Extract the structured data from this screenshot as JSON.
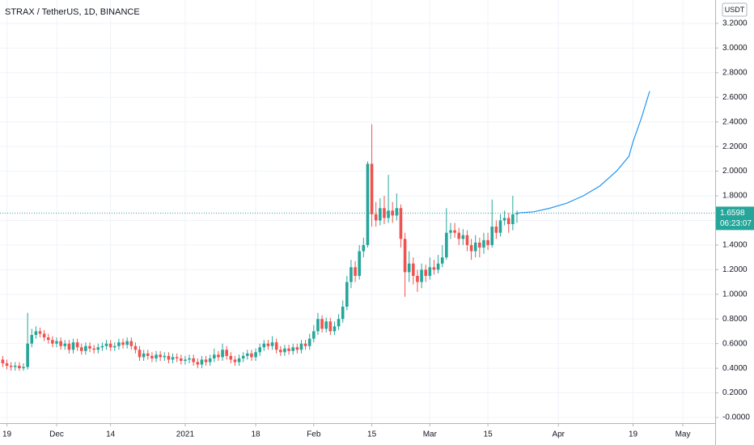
{
  "chart_data": {
    "type": "candlestick",
    "title": "STRAX / TetherUS, 1D, BINANCE",
    "currency": "USDT",
    "up_color": "#26a69a",
    "down_color": "#ef5350",
    "x": [
      0,
      1,
      2,
      3,
      4,
      5,
      6,
      7,
      8,
      9,
      10,
      11,
      12,
      13,
      14,
      15,
      16,
      17,
      18,
      19,
      20,
      21,
      22,
      23,
      24,
      25,
      26,
      27,
      28,
      29,
      30,
      31,
      32,
      33,
      34,
      35,
      36,
      37,
      38,
      39,
      40,
      41,
      42,
      43,
      44,
      45,
      46,
      47,
      48,
      49,
      50,
      51,
      52,
      53,
      54,
      55,
      56,
      57,
      58,
      59,
      60,
      61,
      62,
      63,
      64,
      65,
      66,
      67,
      68,
      69,
      70,
      71,
      72,
      73,
      74,
      75,
      76,
      77,
      78,
      79,
      80,
      81,
      82,
      83,
      84,
      85,
      86,
      87,
      88,
      89,
      90,
      91,
      92,
      93,
      94,
      95,
      96,
      97,
      98,
      99,
      100,
      101,
      102,
      103,
      104,
      105,
      106,
      107,
      108,
      109,
      110,
      111,
      112,
      113,
      114,
      115,
      116,
      117,
      118,
      119,
      120,
      121,
      122,
      123,
      124
    ],
    "open": [
      0.47,
      0.44,
      0.42,
      0.41,
      0.42,
      0.4,
      0.41,
      0.6,
      0.67,
      0.7,
      0.68,
      0.65,
      0.63,
      0.6,
      0.62,
      0.58,
      0.6,
      0.55,
      0.61,
      0.57,
      0.54,
      0.58,
      0.56,
      0.55,
      0.57,
      0.58,
      0.6,
      0.57,
      0.58,
      0.61,
      0.59,
      0.62,
      0.58,
      0.55,
      0.49,
      0.52,
      0.5,
      0.48,
      0.51,
      0.49,
      0.5,
      0.47,
      0.49,
      0.48,
      0.46,
      0.47,
      0.48,
      0.45,
      0.43,
      0.47,
      0.45,
      0.48,
      0.51,
      0.49,
      0.55,
      0.5,
      0.47,
      0.45,
      0.48,
      0.5,
      0.52,
      0.49,
      0.53,
      0.57,
      0.6,
      0.58,
      0.61,
      0.55,
      0.53,
      0.56,
      0.54,
      0.57,
      0.55,
      0.6,
      0.58,
      0.64,
      0.7,
      0.8,
      0.72,
      0.78,
      0.7,
      0.74,
      0.8,
      0.9,
      1.1,
      1.22,
      1.15,
      1.35,
      1.4,
      2.06,
      1.65,
      1.6,
      1.7,
      1.62,
      1.68,
      1.64,
      1.7,
      1.45,
      1.18,
      1.25,
      1.15,
      1.1,
      1.2,
      1.15,
      1.22,
      1.2,
      1.25,
      1.3,
      1.5,
      1.52,
      1.5,
      1.45,
      1.48,
      1.4,
      1.35,
      1.42,
      1.38,
      1.44,
      1.4,
      1.55,
      1.5,
      1.6,
      1.62,
      1.57,
      1.65
    ],
    "high": [
      0.5,
      0.47,
      0.45,
      0.45,
      0.45,
      0.44,
      0.85,
      0.72,
      0.74,
      0.73,
      0.71,
      0.68,
      0.66,
      0.65,
      0.65,
      0.63,
      0.63,
      0.64,
      0.64,
      0.6,
      0.61,
      0.61,
      0.59,
      0.6,
      0.61,
      0.63,
      0.63,
      0.61,
      0.64,
      0.64,
      0.65,
      0.65,
      0.61,
      0.58,
      0.55,
      0.55,
      0.53,
      0.54,
      0.54,
      0.53,
      0.53,
      0.52,
      0.52,
      0.51,
      0.5,
      0.51,
      0.51,
      0.48,
      0.5,
      0.5,
      0.51,
      0.56,
      0.54,
      0.6,
      0.58,
      0.53,
      0.5,
      0.51,
      0.53,
      0.55,
      0.55,
      0.56,
      0.6,
      0.63,
      0.63,
      0.66,
      0.64,
      0.58,
      0.59,
      0.59,
      0.6,
      0.6,
      0.63,
      0.63,
      0.68,
      0.75,
      0.85,
      0.83,
      0.81,
      0.81,
      0.78,
      0.84,
      0.95,
      1.15,
      1.28,
      1.27,
      1.4,
      1.46,
      2.08,
      2.38,
      1.75,
      1.78,
      1.8,
      1.97,
      1.75,
      1.82,
      1.73,
      1.5,
      1.35,
      1.3,
      1.2,
      1.25,
      1.24,
      1.3,
      1.28,
      1.32,
      1.4,
      1.7,
      1.58,
      1.58,
      1.54,
      1.53,
      1.52,
      1.45,
      1.48,
      1.46,
      1.5,
      1.5,
      1.77,
      1.6,
      1.65,
      1.68,
      1.66,
      1.8,
      1.68
    ],
    "low": [
      0.41,
      0.39,
      0.38,
      0.38,
      0.38,
      0.38,
      0.39,
      0.57,
      0.64,
      0.65,
      0.62,
      0.6,
      0.57,
      0.57,
      0.55,
      0.55,
      0.52,
      0.52,
      0.54,
      0.51,
      0.51,
      0.53,
      0.52,
      0.52,
      0.54,
      0.55,
      0.54,
      0.54,
      0.55,
      0.56,
      0.56,
      0.55,
      0.52,
      0.46,
      0.46,
      0.47,
      0.45,
      0.45,
      0.46,
      0.46,
      0.44,
      0.44,
      0.45,
      0.43,
      0.43,
      0.44,
      0.42,
      0.4,
      0.4,
      0.42,
      0.42,
      0.45,
      0.46,
      0.46,
      0.47,
      0.44,
      0.42,
      0.42,
      0.45,
      0.47,
      0.46,
      0.46,
      0.5,
      0.54,
      0.55,
      0.55,
      0.52,
      0.5,
      0.5,
      0.51,
      0.51,
      0.52,
      0.52,
      0.55,
      0.55,
      0.61,
      0.67,
      0.69,
      0.69,
      0.67,
      0.67,
      0.71,
      0.77,
      0.87,
      1.05,
      1.1,
      1.12,
      1.3,
      1.38,
      1.55,
      1.55,
      1.56,
      1.57,
      1.58,
      1.58,
      1.6,
      1.38,
      0.98,
      1.1,
      1.08,
      1.02,
      1.05,
      1.1,
      1.12,
      1.16,
      1.17,
      1.22,
      1.28,
      1.45,
      1.46,
      1.4,
      1.4,
      1.35,
      1.28,
      1.3,
      1.3,
      1.33,
      1.36,
      1.38,
      1.45,
      1.47,
      1.56,
      1.5,
      1.52,
      1.58
    ],
    "close": [
      0.44,
      0.42,
      0.41,
      0.42,
      0.4,
      0.41,
      0.6,
      0.67,
      0.7,
      0.68,
      0.65,
      0.63,
      0.6,
      0.62,
      0.58,
      0.6,
      0.55,
      0.61,
      0.57,
      0.54,
      0.58,
      0.56,
      0.55,
      0.57,
      0.58,
      0.6,
      0.57,
      0.58,
      0.61,
      0.59,
      0.62,
      0.58,
      0.55,
      0.49,
      0.52,
      0.5,
      0.48,
      0.51,
      0.49,
      0.5,
      0.47,
      0.49,
      0.48,
      0.46,
      0.47,
      0.48,
      0.45,
      0.43,
      0.47,
      0.45,
      0.48,
      0.51,
      0.49,
      0.55,
      0.5,
      0.47,
      0.45,
      0.48,
      0.5,
      0.52,
      0.49,
      0.53,
      0.57,
      0.6,
      0.58,
      0.61,
      0.55,
      0.53,
      0.56,
      0.54,
      0.57,
      0.55,
      0.6,
      0.58,
      0.64,
      0.7,
      0.8,
      0.72,
      0.78,
      0.7,
      0.74,
      0.8,
      0.9,
      1.1,
      1.22,
      1.15,
      1.35,
      1.4,
      2.06,
      1.65,
      1.6,
      1.7,
      1.62,
      1.68,
      1.64,
      1.7,
      1.45,
      1.18,
      1.25,
      1.15,
      1.1,
      1.2,
      1.15,
      1.22,
      1.2,
      1.25,
      1.3,
      1.5,
      1.52,
      1.5,
      1.45,
      1.48,
      1.4,
      1.35,
      1.42,
      1.38,
      1.44,
      1.4,
      1.55,
      1.5,
      1.6,
      1.62,
      1.57,
      1.65,
      1.66
    ],
    "series": [
      {
        "type": "line",
        "color": "#2196f3",
        "x": [
          124,
          128,
          132,
          136,
          140,
          144,
          148,
          151,
          152,
          154,
          156
        ],
        "values": [
          1.66,
          1.67,
          1.7,
          1.74,
          1.8,
          1.88,
          2.0,
          2.12,
          2.24,
          2.43,
          2.65
        ]
      }
    ],
    "last_price": 1.6598,
    "countdown": "06:23:07",
    "xlim": [
      -0.66,
      171.8
    ],
    "xticks": [
      {
        "value": 1,
        "label": "19"
      },
      {
        "value": 13,
        "label": "Dec"
      },
      {
        "value": 26,
        "label": "14"
      },
      {
        "value": 44,
        "label": "2021"
      },
      {
        "value": 61,
        "label": "18"
      },
      {
        "value": 75,
        "label": "Feb"
      },
      {
        "value": 89,
        "label": "15"
      },
      {
        "value": 103,
        "label": "Mar"
      },
      {
        "value": 117,
        "label": "15"
      },
      {
        "value": 134,
        "label": "Apr"
      },
      {
        "value": 152,
        "label": "19"
      },
      {
        "value": 164,
        "label": "May"
      }
    ],
    "ylim": [
      -0.046,
      3.39
    ],
    "yticks": [
      {
        "value": 0,
        "label": "-0.0000"
      },
      {
        "value": 0.2,
        "label": "0.2000"
      },
      {
        "value": 0.4,
        "label": "0.4000"
      },
      {
        "value": 0.6,
        "label": "0.6000"
      },
      {
        "value": 0.8,
        "label": "0.8000"
      },
      {
        "value": 1,
        "label": "1.0000"
      },
      {
        "value": 1.2,
        "label": "1.2000"
      },
      {
        "value": 1.4,
        "label": "1.4000"
      },
      {
        "value": 1.6,
        "label": "1.6000"
      },
      {
        "value": 1.8,
        "label": "1.8000"
      },
      {
        "value": 2,
        "label": "2.0000"
      },
      {
        "value": 2.2,
        "label": "2.2000"
      },
      {
        "value": 2.4,
        "label": "2.4000"
      },
      {
        "value": 2.6,
        "label": "2.6000"
      },
      {
        "value": 2.8,
        "label": "2.8000"
      },
      {
        "value": 3,
        "label": "3.0000"
      },
      {
        "value": 3.2,
        "label": "3.2000"
      }
    ],
    "grid": true
  }
}
